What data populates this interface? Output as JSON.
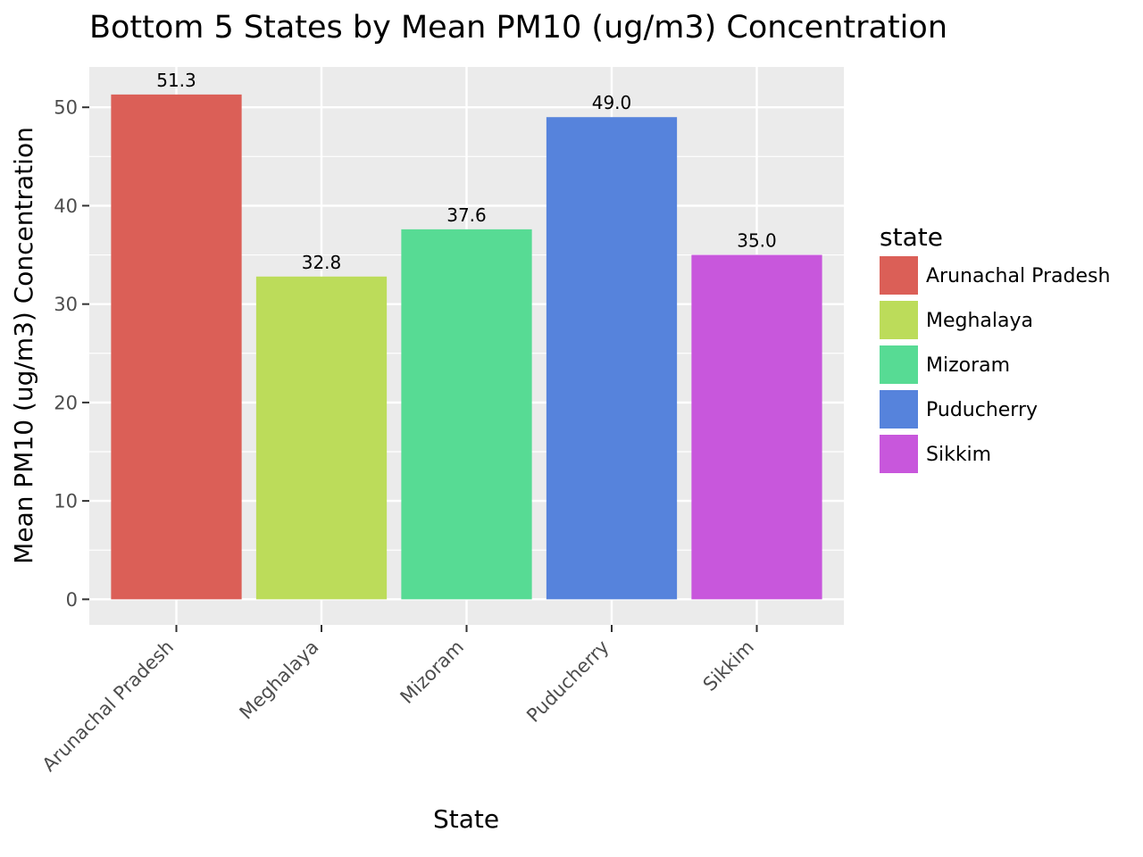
{
  "chart_data": {
    "type": "bar",
    "title": "Bottom 5 States by Mean PM10 (ug/m3) Concentration",
    "xlabel": "State",
    "ylabel": "Mean PM10 (ug/m3) Concentration",
    "categories": [
      "Arunachal Pradesh",
      "Meghalaya",
      "Mizoram",
      "Puducherry",
      "Sikkim"
    ],
    "values": [
      51.3,
      32.8,
      37.6,
      49.0,
      35.0
    ],
    "value_labels": [
      "51.3",
      "32.8",
      "37.6",
      "49.0",
      "35.0"
    ],
    "colors": [
      "#db5f57",
      "#bcdc5a",
      "#57db94",
      "#5683dc",
      "#c857dc"
    ],
    "ylim": [
      -2.6,
      54.1
    ],
    "yticks": [
      0,
      10,
      20,
      30,
      40,
      50
    ],
    "grid": true,
    "legend": {
      "title": "state",
      "position": "right",
      "entries": [
        "Arunachal Pradesh",
        "Meghalaya",
        "Mizoram",
        "Puducherry",
        "Sikkim"
      ]
    }
  }
}
